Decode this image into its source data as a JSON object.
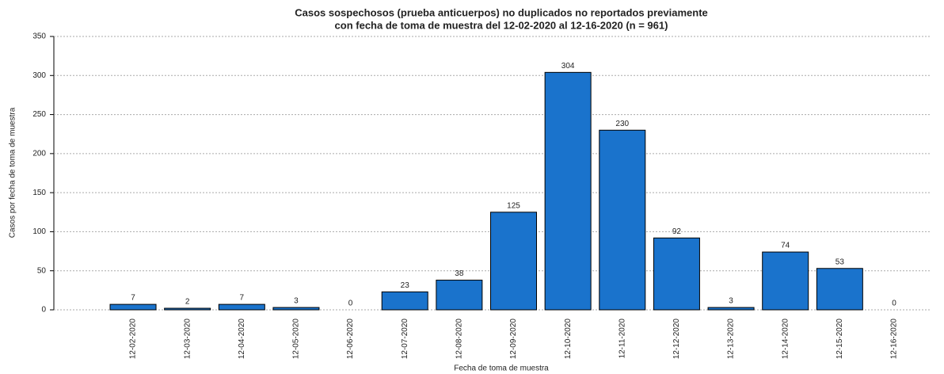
{
  "chart_data": {
    "type": "bar",
    "title": [
      "Casos sospechosos (prueba anticuerpos) no duplicados no reportados previamente",
      "con fecha de toma de muestra del 12-02-2020 al 12-16-2020 (n = 961)"
    ],
    "x_label": "Fecha de toma de muestra",
    "y_label": "Casos por fecha de toma de muestra",
    "categories": [
      "12-02-2020",
      "12-03-2020",
      "12-04-2020",
      "12-05-2020",
      "12-06-2020",
      "12-07-2020",
      "12-08-2020",
      "12-09-2020",
      "12-10-2020",
      "12-11-2020",
      "12-12-2020",
      "12-13-2020",
      "12-14-2020",
      "12-15-2020",
      "12-16-2020"
    ],
    "values": [
      7,
      2,
      7,
      3,
      0,
      23,
      38,
      125,
      304,
      230,
      92,
      3,
      74,
      53,
      0
    ],
    "color": "#1a73cc",
    "ylim": [
      0,
      350
    ],
    "yticks": [
      0,
      50,
      100,
      150,
      200,
      250,
      300,
      350
    ],
    "grid": true
  }
}
